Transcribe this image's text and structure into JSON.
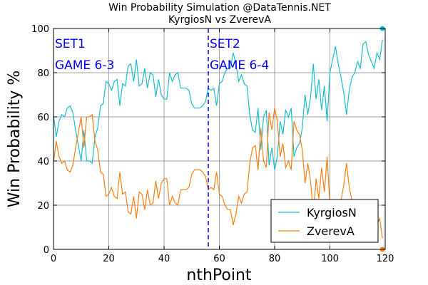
{
  "chart_data": {
    "type": "line",
    "title": "Win Probability Simulation @DataTennis.NET",
    "subtitle": "KyrgiosN vs ZverevA",
    "xlabel": "nthPoint",
    "ylabel": "Win Probability %",
    "xlim": [
      0,
      120
    ],
    "ylim": [
      0,
      100
    ],
    "xticks": [
      0,
      20,
      40,
      60,
      80,
      100,
      120
    ],
    "yticks": [
      0,
      20,
      40,
      60,
      80,
      100
    ],
    "grid": true,
    "legend_position": "bottom-right",
    "set_divider_x": 56,
    "annotations": [
      {
        "lines": [
          "SET1",
          "GAME 6-3"
        ],
        "x": 0.5
      },
      {
        "lines": [
          "SET2",
          "GAME 6-4"
        ],
        "x": 56.5
      }
    ],
    "series": [
      {
        "name": "KyrgiosN",
        "color": "#17becf",
        "values": [
          61,
          51,
          58,
          61,
          60,
          64,
          65,
          62,
          54,
          47,
          40,
          54,
          40,
          40,
          39,
          51,
          55,
          65,
          66,
          76,
          75,
          72,
          76,
          77,
          65,
          75,
          74,
          83,
          84,
          76,
          86,
          74,
          75,
          82,
          73,
          80,
          79,
          69,
          77,
          70,
          68,
          68,
          80,
          76,
          79,
          80,
          73,
          73,
          73,
          72,
          66,
          64,
          64,
          64,
          65,
          67,
          73,
          72,
          73,
          65,
          75,
          76,
          80,
          82,
          82,
          89,
          84,
          76,
          79,
          75,
          74,
          61,
          54,
          53,
          64,
          45,
          60,
          63,
          38,
          46,
          36,
          42,
          58,
          52,
          63,
          60,
          64,
          42,
          46,
          48,
          55,
          70,
          61,
          69,
          84,
          68,
          77,
          63,
          74,
          58,
          80,
          86,
          92,
          84,
          78,
          71,
          61,
          72,
          78,
          80,
          85,
          82,
          93,
          94,
          88,
          85,
          82,
          89,
          86,
          95
        ],
        "end_marker": 100
      },
      {
        "name": "ZverevA",
        "color": "#ff7f0e",
        "values": [
          39,
          49,
          42,
          39,
          40,
          36,
          35,
          38,
          46,
          53,
          60,
          46,
          60,
          60,
          61,
          49,
          45,
          35,
          34,
          24,
          25,
          28,
          24,
          23,
          35,
          25,
          26,
          17,
          16,
          24,
          14,
          26,
          25,
          18,
          27,
          20,
          21,
          31,
          23,
          30,
          32,
          32,
          20,
          24,
          21,
          20,
          27,
          27,
          27,
          28,
          34,
          36,
          36,
          36,
          35,
          33,
          27,
          28,
          27,
          35,
          25,
          24,
          20,
          18,
          18,
          11,
          16,
          24,
          21,
          25,
          26,
          39,
          46,
          47,
          36,
          55,
          40,
          37,
          62,
          54,
          64,
          58,
          42,
          48,
          37,
          40,
          36,
          58,
          54,
          52,
          45,
          30,
          39,
          31,
          16,
          32,
          23,
          37,
          26,
          42,
          20,
          14,
          8,
          16,
          22,
          29,
          39,
          28,
          22,
          20,
          15,
          18,
          7,
          6,
          12,
          15,
          18,
          11,
          14,
          5
        ],
        "end_marker": 0
      }
    ]
  }
}
